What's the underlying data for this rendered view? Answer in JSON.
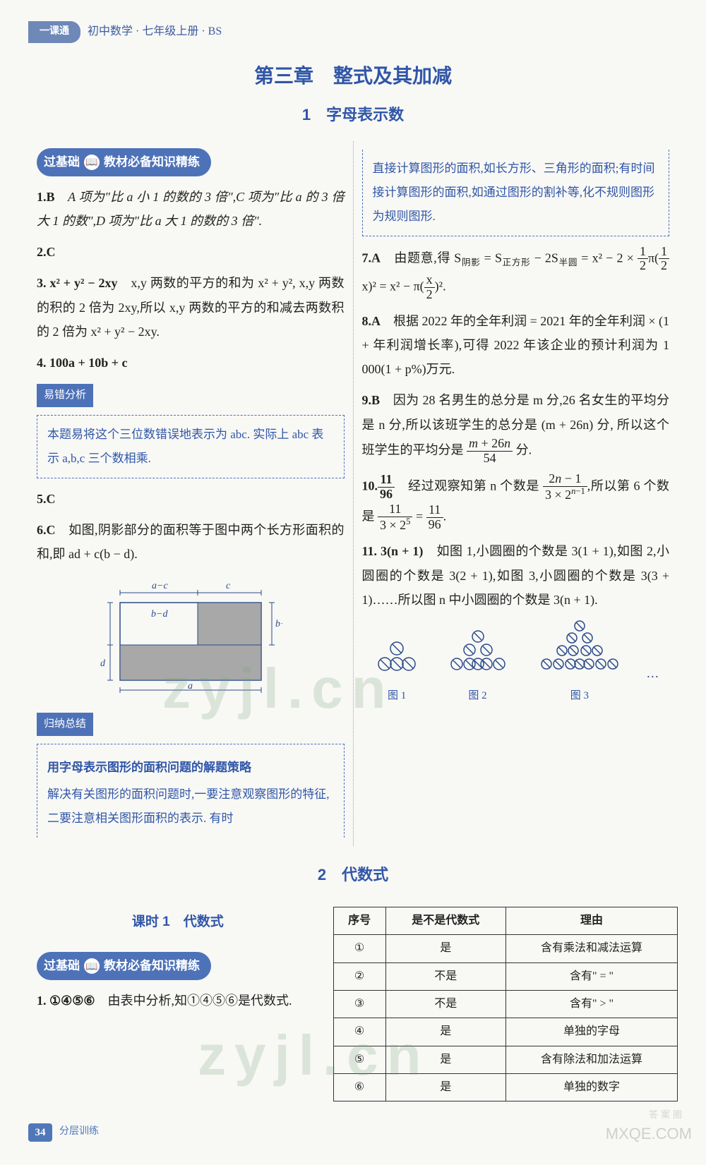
{
  "header": {
    "tab": "一课通",
    "text": "初中数学 · 七年级上册 · BS"
  },
  "chapter": "第三章　整式及其加减",
  "section1": "1　字母表示数",
  "pill": {
    "left": "过基础",
    "right": "教材必备知识精练"
  },
  "left": {
    "q1": {
      "num": "1.B",
      "text": "　A 项为\"比 a 小 1 的数的 3 倍\",C 项为\"比 a 的 3 倍大 1 的数\",D 项为\"比 a 大 1 的数的 3 倍\"."
    },
    "q2": "2.C",
    "q3": {
      "num": "3. x² + y² − 2xy",
      "text": "　x,y 两数的平方的和为 x² + y², x,y 两数的积的 2 倍为 2xy,所以 x,y 两数的平方的和减去两数积的 2 倍为 x² + y² − 2xy."
    },
    "q4": "4. 100a + 10b + c",
    "errTag": "易错分析",
    "errText": "本题易将这个三位数错误地表示为 abc. 实际上 abc 表示 a,b,c 三个数相乘.",
    "q5": "5.C",
    "q6": {
      "num": "6.C",
      "text": "　如图,阴影部分的面积等于图中两个长方形面积的和,即 ad + c(b − d)."
    },
    "fig": {
      "a": "a",
      "b": "b",
      "c": "c",
      "d": "d",
      "bd": "b−d",
      "ac": "a−c"
    },
    "sumTag": "归纳总结",
    "sumTitle": "用字母表示图形的面积问题的解题策略",
    "sumText": "解决有关图形的面积问题时,一要注意观察图形的特征,二要注意相关图形面积的表示. 有时"
  },
  "right": {
    "topBox": "直接计算图形的面积,如长方形、三角形的面积;有时间接计算图形的面积,如通过图形的割补等,化不规则图形为规则图形.",
    "q7": {
      "num": "7.A",
      "p1": "　由题意,得 S",
      "sub1": "阴影",
      "p2": " = S",
      "sub2": "正方形",
      "p3": " − 2S",
      "sub3": "半圆",
      "p4": " = x² − 2 × ",
      "p5": "π(",
      "p6": "x)² = x² − π(",
      "p7": ")²."
    },
    "q8": {
      "num": "8.A",
      "text": "　根据 2022 年的全年利润 = 2021 年的全年利润 × (1 + 年利润增长率),可得 2022 年该企业的预计利润为 1 000(1 + p%)万元."
    },
    "q9": {
      "num": "9.B",
      "text": "　因为 28 名男生的总分是 m 分,26 名女生的平均分是 n 分,所以该班学生的总分是 (m + 26n) 分, 所以这个班学生的平均分是 ",
      "tail": " 分."
    },
    "q10": {
      "num": "10.",
      "text": "　经过观察知第 n 个数是 ",
      "mid": ",所以第 6 个数是 ",
      "eq": " = "
    },
    "q11": {
      "num": "11. 3(n + 1)",
      "text": "　如图 1,小圆圈的个数是 3(1 + 1),如图 2,小圆圈的个数是 3(2 + 1),如图 3,小圆圈的个数是 3(3 + 1)……所以图 n 中小圆圈的个数是 3(n + 1)."
    },
    "figLabels": {
      "f1": "图 1",
      "f2": "图 2",
      "f3": "图 3",
      "dots": "…"
    }
  },
  "section2": "2　代数式",
  "lesson": "课时 1　代数式",
  "lowerLeft": {
    "q1": {
      "num": "1. ①④⑤⑥",
      "text": "　由表中分析,知①④⑤⑥是代数式."
    }
  },
  "table": {
    "headers": [
      "序号",
      "是不是代数式",
      "理由"
    ],
    "rows": [
      [
        "①",
        "是",
        "含有乘法和减法运算"
      ],
      [
        "②",
        "不是",
        "含有\" = \""
      ],
      [
        "③",
        "不是",
        "含有\" > \""
      ],
      [
        "④",
        "是",
        "单独的字母"
      ],
      [
        "⑤",
        "是",
        "含有除法和加法运算"
      ],
      [
        "⑥",
        "是",
        "单独的数字"
      ]
    ]
  },
  "footer": {
    "page": "34",
    "text": "分层训练"
  },
  "watermark": "zyjl.cn",
  "cornerSmall": "答案圈",
  "cornerMark": "MXQE.COM"
}
